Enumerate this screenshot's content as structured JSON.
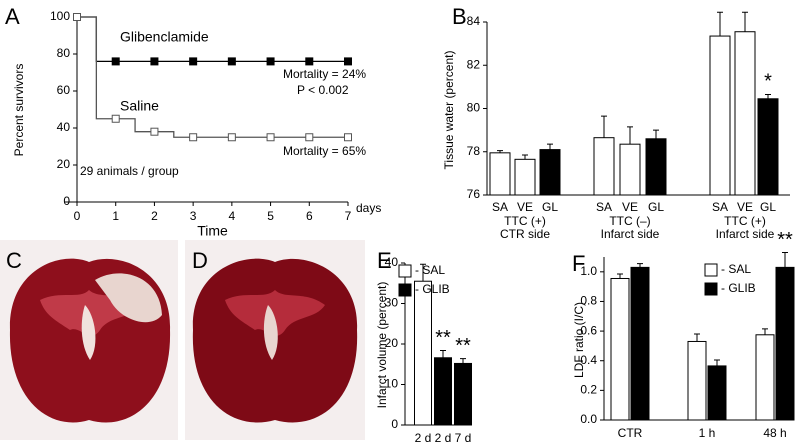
{
  "chart_data": [
    {
      "type": "line",
      "panel_label": "A",
      "step": "mid",
      "xlabel": "Time",
      "ylabel": "Percent survivors",
      "x": [
        0,
        1,
        2,
        3,
        4,
        5,
        6,
        7
      ],
      "xlim": [
        0,
        7
      ],
      "xticks": [
        0,
        1,
        2,
        3,
        4,
        5,
        6,
        7
      ],
      "ylim": [
        0,
        100
      ],
      "yticks": [
        0,
        20,
        40,
        60,
        80,
        100
      ],
      "series": [
        {
          "name": "Glibenclamide",
          "color": "#000000",
          "marker_fill": "#000000",
          "values": [
            100,
            76,
            76,
            76,
            76,
            76,
            76,
            76
          ]
        },
        {
          "name": "Saline",
          "color": "#555555",
          "marker_fill": "#ffffff",
          "values": [
            100,
            45,
            38,
            35,
            35,
            35,
            35,
            35
          ]
        }
      ],
      "annotations": [
        "Mortality = 24%",
        "P < 0.002",
        "Mortality = 65%",
        "29 animals / group",
        "days"
      ]
    },
    {
      "type": "bar",
      "panel_label": "B",
      "ylabel": "Tissue water (percent)",
      "categories": [
        "SA",
        "VE",
        "GL",
        "SA",
        "VE",
        "GL",
        "SA",
        "VE",
        "GL"
      ],
      "values": [
        77.95,
        77.65,
        78.1,
        78.65,
        78.35,
        78.6,
        83.35,
        83.55,
        80.45
      ],
      "errors": [
        0.1,
        0.2,
        0.25,
        1.0,
        0.8,
        0.4,
        1.1,
        0.9,
        0.2
      ],
      "colors": [
        "#ffffff",
        "#ffffff",
        "#000000",
        "#ffffff",
        "#ffffff",
        "#000000",
        "#ffffff",
        "#ffffff",
        "#000000"
      ],
      "group_labels": [
        [
          "TTC (+)",
          "CTR side"
        ],
        [
          "TTC (–)",
          "Infarct side"
        ],
        [
          "TTC (+)",
          "Infarct side"
        ]
      ],
      "ylim": [
        76,
        84
      ],
      "yticks": [
        76,
        78,
        80,
        82,
        84
      ],
      "annotations": [
        "*"
      ]
    },
    {
      "type": "grouped_bar",
      "panel_label": "E",
      "ylabel": "Infarct volume (percent)",
      "categories": [
        "2 d",
        "2 d",
        "7 d"
      ],
      "series": [
        {
          "name": "- SAL",
          "color": "#ffffff",
          "values": [
            35.5,
            null,
            null
          ],
          "errors": [
            4.2,
            null,
            null
          ]
        },
        {
          "name": "- GLIB",
          "color": "#000000",
          "values": [
            null,
            16.6,
            15.2
          ],
          "errors": [
            null,
            1.8,
            1.2
          ]
        }
      ],
      "ylim": [
        0,
        40
      ],
      "yticks": [
        0,
        10,
        20,
        30,
        40
      ],
      "annotations": [
        "**",
        "**"
      ]
    },
    {
      "type": "grouped_bar",
      "panel_label": "F",
      "ylabel": "LDF ratio (I/C)",
      "categories": [
        "CTR",
        "1 h",
        "48 h"
      ],
      "series": [
        {
          "name": "- SAL",
          "color": "#ffffff",
          "values": [
            0.955,
            0.53,
            0.575
          ],
          "errors": [
            0.03,
            0.05,
            0.04
          ]
        },
        {
          "name": "- GLIB",
          "color": "#000000",
          "values": [
            1.03,
            0.365,
            1.03
          ],
          "errors": [
            0.025,
            0.04,
            0.1
          ]
        }
      ],
      "ylim": [
        0,
        1.1
      ],
      "yticks": [
        {
          "value": 0,
          "label": "0.0"
        },
        0.2,
        0.4,
        0.6,
        0.8,
        {
          "value": 1,
          "label": "1.0"
        }
      ],
      "annotations": [
        "**"
      ]
    }
  ],
  "image_panels": [
    {
      "label": "C"
    },
    {
      "label": "D"
    }
  ]
}
